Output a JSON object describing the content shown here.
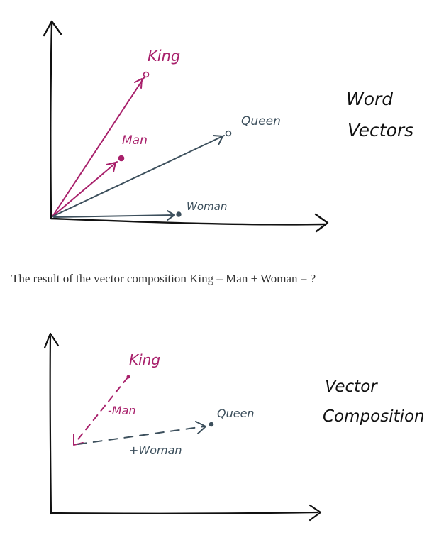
{
  "colors": {
    "magenta": "#a8206b",
    "slate": "#3c4f5c",
    "ink": "#111111",
    "text": "#333333"
  },
  "figure1": {
    "title_line1": "Word",
    "title_line2": "Vectors",
    "labels": {
      "king": "King",
      "man": "Man",
      "queen": "Queen",
      "woman": "Woman"
    }
  },
  "caption": "The result of the vector composition King – Man + Woman = ?",
  "figure2": {
    "title_line1": "Vector",
    "title_line2": "Composition",
    "labels": {
      "king": "King",
      "minus_man": "-Man",
      "plus_woman": "+Woman",
      "queen": "Queen"
    }
  }
}
